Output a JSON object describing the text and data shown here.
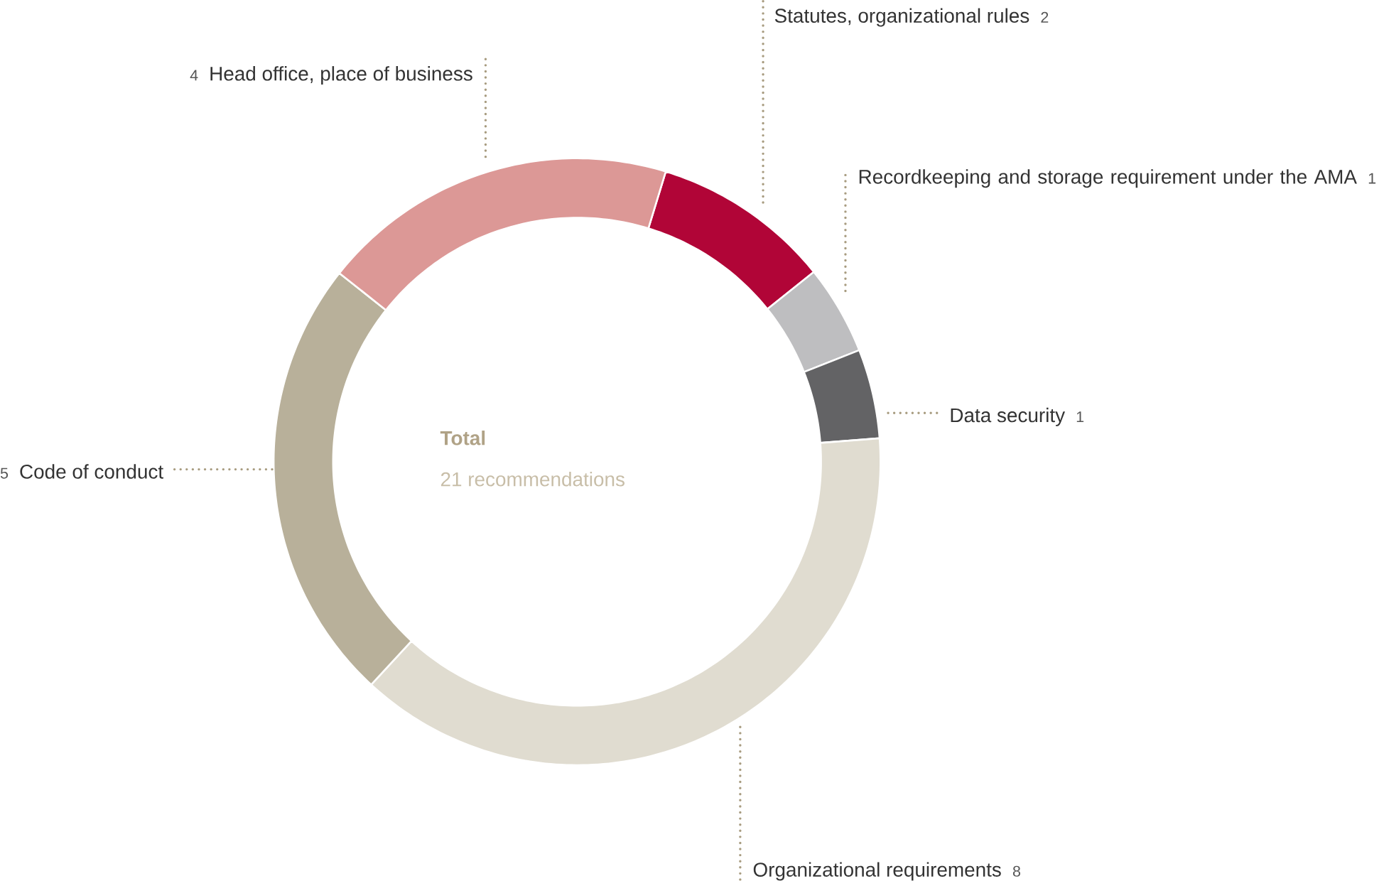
{
  "chart_data": {
    "type": "donut",
    "categories": [
      "Statutes, organizational rules",
      "Recordkeeping and storage requirement under the AMA",
      "Data security",
      "Organizational requirements",
      "Code of conduct",
      "Head office, place of business"
    ],
    "values": [
      2,
      1,
      1,
      8,
      5,
      4
    ],
    "colors": [
      "#b10537",
      "#bebec0",
      "#636365",
      "#e0dcd0",
      "#b8b09a",
      "#dc9896"
    ],
    "data_labels": true,
    "annotations": [
      "**Total**",
      "21 recommendations"
    ]
  }
}
